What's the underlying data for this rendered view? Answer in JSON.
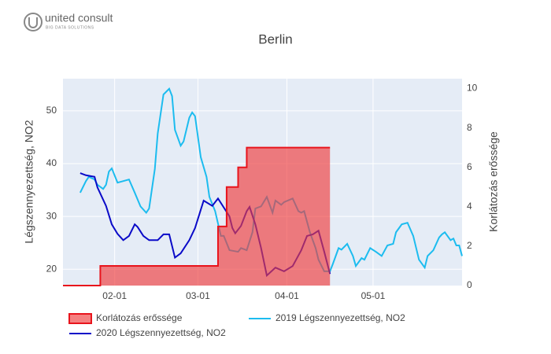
{
  "logo": {
    "name": "united consult",
    "tagline": "BIG DATA SOLUTIONS"
  },
  "chart_data": {
    "type": "line",
    "title": "Berlin",
    "y_label": "Légszennyezettség, NO2",
    "y2_label": "Korlátozás erőssége",
    "xlim": [
      "01-14",
      "06-01"
    ],
    "xticks": [
      "02-01",
      "03-01",
      "04-01",
      "05-01"
    ],
    "ylim": [
      16.9,
      56.1
    ],
    "yticks": [
      20,
      30,
      40,
      50
    ],
    "y2lim": [
      0,
      10.5
    ],
    "y2ticks": [
      0,
      2,
      4,
      6,
      8,
      10
    ],
    "grid": true,
    "legend": "bottom",
    "series": [
      {
        "name": "Korlátozás erőssége",
        "color": "#e8141c",
        "fill": "rgba(240,60,60,0.65)",
        "shape": "hv",
        "axis": "y2",
        "x": [
          "01-14",
          "01-27",
          "03-08",
          "03-11",
          "03-15",
          "03-18",
          "04-16"
        ],
        "values": [
          0,
          1,
          3,
          5,
          6,
          7,
          7
        ]
      },
      {
        "name": "2019 Légszennyezettség, NO2",
        "color": "#1cbcef",
        "x": [
          "01-20",
          "01-22",
          "01-23",
          "01-25",
          "01-26",
          "01-28",
          "01-29",
          "01-30",
          "01-31",
          "02-02",
          "02-04",
          "02-06",
          "02-08",
          "02-10",
          "02-12",
          "02-13",
          "02-15",
          "02-16",
          "02-18",
          "02-20",
          "02-21",
          "02-22",
          "02-24",
          "02-25",
          "02-27",
          "02-28",
          "02-29",
          "03-02",
          "03-04",
          "03-05",
          "03-07",
          "03-09",
          "03-10",
          "03-12",
          "03-15",
          "03-16",
          "03-18",
          "03-20",
          "03-21",
          "03-23",
          "03-25",
          "03-27",
          "03-28",
          "03-30",
          "03-31",
          "04-03",
          "04-05",
          "04-06",
          "04-07",
          "04-09",
          "04-11",
          "04-12",
          "04-14",
          "04-16",
          "04-17",
          "04-19",
          "04-20",
          "04-22",
          "04-24",
          "04-25",
          "04-27",
          "04-28",
          "04-30",
          "05-02",
          "05-04",
          "05-06",
          "05-08",
          "05-09",
          "05-11",
          "05-13",
          "05-15",
          "05-17",
          "05-19",
          "05-20",
          "05-22",
          "05-24",
          "05-25",
          "05-26",
          "05-28",
          "05-29",
          "05-30",
          "05-31",
          "06-01"
        ],
        "values": [
          34.5,
          36.7,
          37.5,
          37,
          36,
          35.2,
          36,
          38.5,
          39.1,
          36.4,
          36.7,
          37,
          34.5,
          31.9,
          30.7,
          31.5,
          39,
          45.7,
          53.1,
          54.2,
          52.8,
          46.4,
          43.4,
          44.2,
          48.7,
          49.7,
          49,
          41.2,
          37.5,
          33.7,
          31,
          26.3,
          26.3,
          23.6,
          23.3,
          24,
          23.6,
          27,
          31.5,
          31.9,
          33.7,
          30.7,
          33,
          32.2,
          32.7,
          33.4,
          31,
          30.7,
          31,
          27,
          24,
          21.8,
          19.6,
          19.6,
          21,
          24,
          23.7,
          24.8,
          22.5,
          20.6,
          22.1,
          21.8,
          24,
          23.3,
          22.5,
          24.5,
          24.8,
          27,
          28.5,
          28.8,
          26.3,
          21.8,
          20.3,
          22.5,
          23.6,
          26,
          26.6,
          27,
          25.5,
          25.8,
          24.5,
          24.5,
          22.5
        ]
      },
      {
        "name": "2020 Légszennyezettség, NO2",
        "color": "#0a0ac8",
        "x": [
          "01-20",
          "01-22",
          "01-25",
          "01-26",
          "01-29",
          "01-31",
          "02-02",
          "02-04",
          "02-06",
          "02-08",
          "02-09",
          "02-11",
          "02-13",
          "02-16",
          "02-18",
          "02-20",
          "02-22",
          "02-24",
          "02-27",
          "02-29",
          "03-03",
          "03-06",
          "03-08",
          "03-12",
          "03-13",
          "03-14",
          "03-16",
          "03-18",
          "03-19",
          "03-21",
          "03-23",
          "03-25",
          "03-28",
          "03-31",
          "04-03",
          "04-06",
          "04-08",
          "04-10",
          "04-12",
          "04-14",
          "04-16"
        ],
        "values": [
          38.2,
          37.8,
          37.5,
          35.5,
          32,
          28.5,
          26.7,
          25.5,
          26.3,
          28.5,
          28,
          26.3,
          25.5,
          25.5,
          26.6,
          26.6,
          22.2,
          23,
          25.5,
          27.8,
          33,
          32,
          33.4,
          30,
          27.8,
          26.8,
          28.2,
          31,
          31.8,
          28.5,
          24,
          18.8,
          20.3,
          19.6,
          20.6,
          23.6,
          26.3,
          26.6,
          27.3,
          23.3,
          19.1
        ]
      }
    ]
  }
}
